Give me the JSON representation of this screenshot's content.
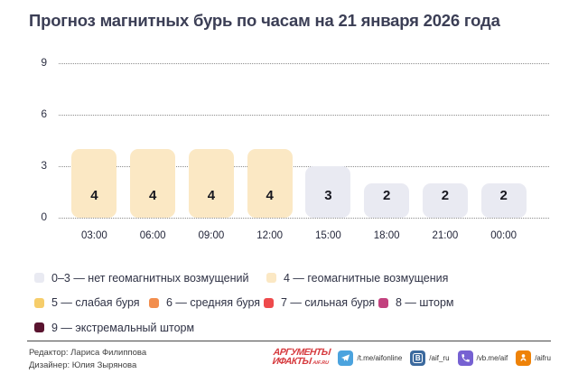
{
  "title": "Прогноз магнитных бурь по часам на 21 января 2026 года",
  "chart_data": {
    "type": "bar",
    "title": "Прогноз магнитных бурь по часам на 21 января 2026 года",
    "categories": [
      "03:00",
      "06:00",
      "09:00",
      "12:00",
      "15:00",
      "18:00",
      "21:00",
      "00:00"
    ],
    "values": [
      4,
      4,
      4,
      4,
      3,
      2,
      2,
      2
    ],
    "bar_colors": [
      "#FBE8C4",
      "#FBE8C4",
      "#FBE8C4",
      "#FBE8C4",
      "#E9EAF2",
      "#E9EAF2",
      "#E9EAF2",
      "#E9EAF2"
    ],
    "yticks": [
      0,
      3,
      6,
      9
    ],
    "ylim": [
      0,
      9
    ],
    "xlabel": "",
    "ylabel": "",
    "grid": "horizontal-dotted",
    "legend_position": "below"
  },
  "legend_rows": [
    [
      {
        "label": "0–3 — нет геомагнитных возмущений",
        "color": "#E9EAF2"
      },
      {
        "label": "4 — геомагнитные возмущения",
        "color": "#FBE8C4"
      }
    ],
    [
      {
        "label": "5 — слабая буря",
        "color": "#F6CD6A"
      },
      {
        "label": "6 — средняя буря",
        "color": "#F28E4E"
      },
      {
        "label": "7 — сильная буря",
        "color": "#EE4A4C"
      },
      {
        "label": "8 — шторм",
        "color": "#C2417E"
      }
    ],
    [
      {
        "label": "9 — экстремальный шторм",
        "color": "#5A142F"
      }
    ]
  ],
  "footer": {
    "credits": {
      "editor": "Редактор: Лариса Филиппова",
      "designer": "Дизайнер: Юлия Зырянова"
    },
    "logo": {
      "line1": "АРГУМЕНТЫ",
      "line2": "ИФАКТЫ",
      "site": "AIF.RU",
      "color": "#D63A3E"
    },
    "socials": [
      {
        "icon": "telegram-icon",
        "handle": "/t.me/aifonline",
        "color": "#4BA3DE"
      },
      {
        "icon": "vk-icon",
        "handle": "/aif_ru",
        "color": "#3C6A9E"
      },
      {
        "icon": "viber-icon",
        "handle": "/vb.me/aif",
        "color": "#7661D2"
      },
      {
        "icon": "ok-icon",
        "handle": "/aifru",
        "color": "#EE8208"
      }
    ]
  }
}
